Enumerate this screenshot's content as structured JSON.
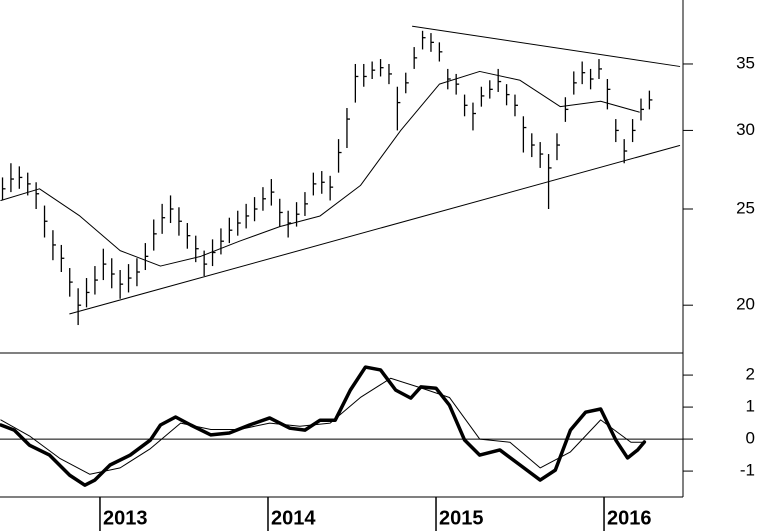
{
  "chart_data": [
    {
      "type": "hlc",
      "x": [
        2012.42,
        2012.47,
        2012.52,
        2012.57,
        2012.62,
        2012.67,
        2012.72,
        2012.77,
        2012.82,
        2012.87,
        2012.92,
        2012.97,
        2013.02,
        2013.07,
        2013.12,
        2013.17,
        2013.22,
        2013.27,
        2013.32,
        2013.37,
        2013.42,
        2013.47,
        2013.52,
        2013.57,
        2013.62,
        2013.67,
        2013.72,
        2013.77,
        2013.82,
        2013.87,
        2013.92,
        2013.97,
        2014.02,
        2014.07,
        2014.12,
        2014.17,
        2014.22,
        2014.27,
        2014.32,
        2014.37,
        2014.42,
        2014.47,
        2014.52,
        2014.57,
        2014.62,
        2014.67,
        2014.72,
        2014.77,
        2014.82,
        2014.87,
        2014.92,
        2014.97,
        2015.02,
        2015.07,
        2015.12,
        2015.17,
        2015.22,
        2015.27,
        2015.32,
        2015.37,
        2015.42,
        2015.47,
        2015.52,
        2015.57,
        2015.62,
        2015.67,
        2015.72,
        2015.77,
        2015.82,
        2015.87,
        2015.92,
        2015.97,
        2016.02,
        2016.07,
        2016.12,
        2016.17,
        2016.22,
        2016.27
      ],
      "high": [
        26.9,
        27.8,
        27.6,
        27.2,
        26.6,
        25.2,
        23.8,
        23.0,
        21.8,
        20.8,
        21.3,
        21.9,
        22.8,
        22.3,
        21.7,
        22.0,
        22.3,
        23.1,
        24.4,
        25.3,
        25.8,
        25.1,
        24.2,
        23.5,
        22.7,
        23.3,
        23.9,
        24.5,
        24.9,
        25.3,
        25.7,
        26.3,
        26.8,
        25.6,
        24.9,
        25.4,
        26.0,
        27.2,
        27.3,
        27.0,
        29.4,
        31.6,
        35.0,
        35.0,
        35.2,
        35.4,
        35.0,
        33.2,
        34.3,
        36.4,
        37.8,
        37.6,
        36.8,
        34.6,
        34.2,
        32.6,
        32.0,
        33.2,
        33.7,
        34.6,
        33.4,
        32.6,
        31.0,
        29.8,
        29.2,
        28.4,
        29.8,
        32.4,
        34.4,
        35.2,
        34.6,
        35.4,
        33.8,
        30.8,
        29.4,
        30.8,
        32.3,
        32.9
      ],
      "low": [
        25.5,
        26.0,
        26.2,
        25.8,
        25.0,
        23.4,
        22.2,
        21.6,
        20.4,
        19.1,
        19.9,
        20.5,
        21.2,
        20.8,
        20.3,
        20.6,
        20.9,
        21.7,
        22.7,
        23.6,
        24.2,
        23.5,
        22.8,
        22.1,
        21.4,
        21.9,
        22.5,
        23.1,
        23.5,
        23.9,
        24.3,
        24.9,
        25.2,
        24.0,
        23.4,
        24.0,
        24.6,
        25.8,
        25.9,
        25.5,
        27.2,
        28.8,
        32.0,
        33.2,
        33.8,
        34.0,
        33.4,
        30.0,
        32.7,
        34.6,
        36.2,
        36.0,
        35.2,
        33.0,
        32.6,
        31.0,
        30.0,
        31.7,
        32.3,
        32.8,
        31.8,
        31.0,
        28.5,
        28.2,
        27.5,
        25.0,
        28.0,
        30.6,
        32.6,
        33.4,
        33.0,
        33.8,
        31.5,
        29.2,
        27.8,
        29.2,
        30.7,
        31.5
      ],
      "close": [
        26.2,
        26.8,
        26.9,
        26.5,
        25.9,
        24.3,
        23.0,
        22.3,
        21.1,
        20.0,
        20.6,
        21.2,
        22.0,
        21.5,
        21.0,
        21.3,
        21.6,
        22.4,
        23.6,
        24.5,
        25.0,
        24.3,
        23.5,
        22.8,
        22.0,
        22.6,
        23.2,
        23.8,
        24.2,
        24.6,
        25.0,
        25.6,
        26.0,
        24.8,
        24.2,
        24.7,
        25.3,
        26.5,
        26.6,
        26.3,
        28.5,
        30.8,
        34.0,
        34.0,
        34.5,
        34.7,
        34.2,
        32.0,
        33.5,
        35.5,
        37.2,
        36.8,
        36.0,
        33.8,
        33.4,
        31.8,
        31.2,
        32.5,
        33.0,
        33.6,
        32.6,
        31.8,
        30.2,
        29.0,
        28.4,
        27.5,
        29.0,
        31.5,
        33.5,
        34.3,
        33.8,
        34.6,
        33.0,
        30.0,
        28.6,
        30.0,
        31.5,
        32.2
      ],
      "moving_average": {
        "x": [
          2012.41,
          2012.64,
          2012.88,
          2013.12,
          2013.36,
          2013.6,
          2013.83,
          2014.07,
          2014.31,
          2014.55,
          2014.79,
          2015.02,
          2015.26,
          2015.5,
          2015.74,
          2015.98,
          2016.21
        ],
        "values": [
          25.5,
          26.2,
          24.6,
          22.7,
          21.9,
          22.4,
          23.2,
          24.0,
          24.6,
          26.4,
          30.0,
          33.4,
          34.4,
          33.7,
          31.7,
          32.1,
          31.3
        ]
      },
      "trendlines": [
        {
          "x": [
            2014.86,
            2016.45
          ],
          "values": [
            38.2,
            34.8
          ]
        },
        {
          "x": [
            2012.82,
            2016.45
          ],
          "values": [
            19.6,
            28.97
          ]
        }
      ],
      "xlim": [
        2012.405,
        2016.47
      ],
      "ylim": [
        17.9,
        40.6
      ],
      "yticks": [
        20,
        25,
        30,
        35
      ],
      "log_scale": true,
      "color": "#000000"
    },
    {
      "type": "line",
      "series": [
        {
          "color": "#000000",
          "x": [
            2012.41,
            2012.49,
            2012.58,
            2012.7,
            2012.82,
            2012.91,
            2012.97,
            2013.06,
            2013.18,
            2013.3,
            2013.36,
            2013.45,
            2013.54,
            2013.66,
            2013.77,
            2013.89,
            2014.01,
            2014.13,
            2014.22,
            2014.31,
            2014.4,
            2014.49,
            2014.58,
            2014.67,
            2014.76,
            2014.85,
            2014.91,
            2015.0,
            2015.08,
            2015.17,
            2015.26,
            2015.38,
            2015.5,
            2015.62,
            2015.71,
            2015.8,
            2015.89,
            2015.98,
            2016.07,
            2016.14,
            2016.2,
            2016.24
          ],
          "values": [
            0.44,
            0.28,
            -0.19,
            -0.5,
            -1.13,
            -1.44,
            -1.28,
            -0.81,
            -0.5,
            -0.03,
            0.44,
            0.69,
            0.44,
            0.13,
            0.19,
            0.44,
            0.66,
            0.34,
            0.28,
            0.59,
            0.59,
            1.53,
            2.25,
            2.16,
            1.53,
            1.28,
            1.63,
            1.59,
            1.06,
            -0.03,
            -0.5,
            -0.34,
            -0.81,
            -1.28,
            -0.97,
            0.28,
            0.84,
            0.94,
            -0.03,
            -0.59,
            -0.34,
            -0.09
          ]
        },
        {
          "color": "#000000",
          "x": [
            2012.41,
            2012.58,
            2012.76,
            2012.94,
            2013.12,
            2013.3,
            2013.48,
            2013.66,
            2013.83,
            2014.01,
            2014.19,
            2014.37,
            2014.55,
            2014.73,
            2014.91,
            2015.08,
            2015.26,
            2015.44,
            2015.62,
            2015.8,
            2015.98,
            2016.16,
            2016.24
          ],
          "values": [
            0.6,
            0.1,
            -0.6,
            -1.1,
            -0.9,
            -0.3,
            0.5,
            0.3,
            0.3,
            0.5,
            0.4,
            0.5,
            1.3,
            1.9,
            1.6,
            1.3,
            0.0,
            -0.1,
            -0.9,
            -0.4,
            0.6,
            -0.1,
            -0.1
          ]
        }
      ],
      "xlim": [
        2012.405,
        2016.47
      ],
      "xticks": [
        2013,
        2014,
        2015,
        2016
      ],
      "ylim": [
        -1.81,
        2.69
      ],
      "yticks": [
        -1,
        0,
        1,
        2
      ],
      "zero_line": true
    }
  ]
}
